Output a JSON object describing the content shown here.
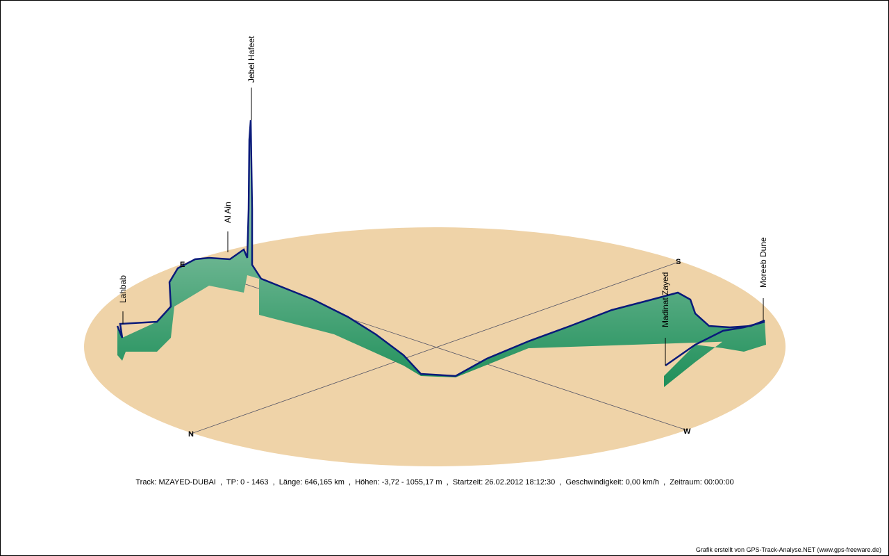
{
  "compass": {
    "north": "N",
    "east": "E",
    "south": "S",
    "west": "W"
  },
  "places": [
    "Lahbab",
    "Al Ain",
    "Jebel Hafeet",
    "Madinat Zayed",
    "Moreeb Dune"
  ],
  "info": "Track: MZAYED-DUBAI  ,  TP: 0 - 1463  ,  Länge: 646,165 km  ,  Höhen: -3,72 - 1055,17 m  ,  Startzeit: 26.02.2012 18:12:30  ,  Geschwindigkeit: 0,00 km/h  ,  Zeitraum: 00:00:00",
  "credit": "Grafik erstellt von GPS-Track-Analyse.NET (www.gps-freeware.de)"
}
